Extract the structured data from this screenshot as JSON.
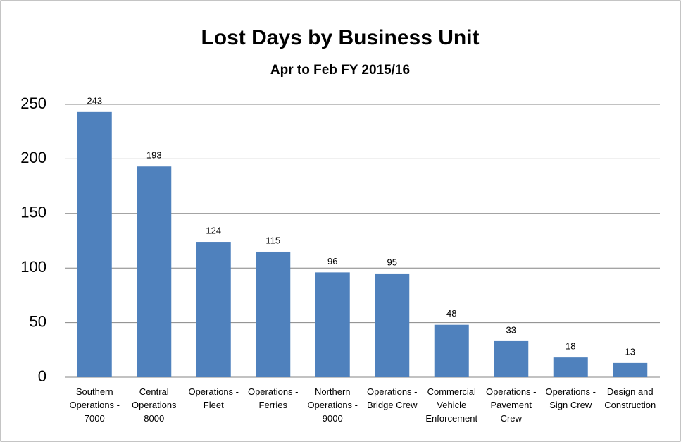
{
  "chart_data": {
    "type": "bar",
    "title": "Lost Days by Business Unit",
    "subtitle": "Apr to Feb FY 2015/16",
    "categories": [
      "Southern Operations - 7000",
      "Central Operations 8000",
      "Operations - Fleet",
      "Operations - Ferries",
      "Northern Operations - 9000",
      "Operations - Bridge Crew",
      "Commercial Vehicle Enforcement",
      "Operations - Pavement Crew",
      "Operations - Sign Crew",
      "Design and Construction"
    ],
    "values": [
      243,
      193,
      124,
      115,
      96,
      95,
      48,
      33,
      18,
      13
    ],
    "color": "#4f81bd",
    "ylim": [
      0,
      250
    ],
    "yticks": [
      0,
      50,
      100,
      150,
      200,
      250
    ],
    "grid": true
  }
}
